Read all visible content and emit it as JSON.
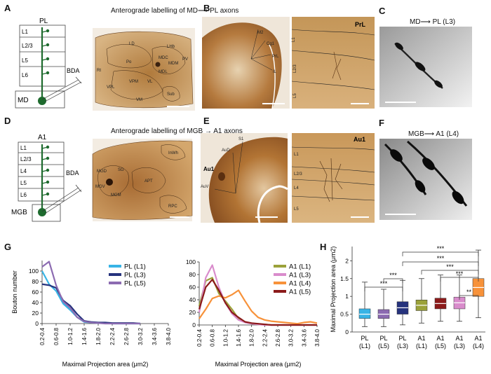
{
  "panels": {
    "A": {
      "letter": "A",
      "title": "Anterograde labelling of MD⟶ PL axons",
      "schematic": {
        "region": "PL",
        "layers": [
          "L1",
          "L2/3",
          "L5",
          "L6"
        ],
        "tracer": "BDA",
        "source": "MD"
      },
      "slice_labels": [
        "LD",
        "Po",
        "MDC",
        "LHb",
        "MDM",
        "PV",
        "MDL",
        "VPM",
        "VPL",
        "Rt",
        "VL",
        "VM",
        "Sub"
      ]
    },
    "B": {
      "letter": "B",
      "labels": [
        "M2",
        "Cg1",
        "PrL",
        "IL"
      ],
      "zoom_region": "PrL",
      "zoom_layers": [
        "L1",
        "L2/3",
        "L5"
      ]
    },
    "C": {
      "letter": "C",
      "title": "MD⟶ PL (L3)"
    },
    "D": {
      "letter": "D",
      "title": "Anterograde labelling of MGB → A1 axons",
      "schematic": {
        "region": "A1",
        "layers": [
          "L1",
          "L2/3",
          "L4",
          "L5",
          "L6"
        ],
        "tracer": "BDA",
        "source": "MGB"
      },
      "slice_labels": [
        "InWh",
        "MGD",
        "SG",
        "MGV",
        "MGM",
        "APT",
        "RPC"
      ]
    },
    "E": {
      "letter": "E",
      "labels": [
        "S1",
        "AuD",
        "Au1",
        "AuV"
      ],
      "zoom_region": "Au1",
      "zoom_layers": [
        "L1",
        "L2/3",
        "L4",
        "L5"
      ]
    },
    "F": {
      "letter": "F",
      "title": "MGB⟶ A1 (L4)"
    },
    "G": {
      "letter": "G"
    },
    "H": {
      "letter": "H"
    }
  },
  "chart_data": [
    {
      "type": "line",
      "ylabel": "Bouton number",
      "xlabel": "Maximal Projection area (μm2)",
      "categories": [
        "0.2-0.4",
        "0.4-0.6",
        "0.6-0.8",
        "0.8-1.0",
        "1.0-1.2",
        "1.2-1.4",
        "1.4-1.6",
        "1.6-1.8",
        "1.8-2.0",
        "2.0-2.2",
        "2.2-2.4",
        "2.4-2.6",
        "2.6-2.8",
        "2.8-3.0",
        "3.0-3.2"
      ],
      "tick_labels": [
        "0.2-0.4",
        "0.6-0.8",
        "1.0-1.2",
        "1.4-1.6",
        "1.8-2.0",
        "2.2-2.4",
        "2.6-2.8",
        "3.0-3.2",
        "3.4-3.6",
        "3.8-4.0"
      ],
      "ylim": [
        0,
        120
      ],
      "yticks": [
        0,
        20,
        40,
        60,
        80,
        100
      ],
      "legend_position": "top-right",
      "series": [
        {
          "name": "PL (L1)",
          "color": "#38b4e6",
          "values": [
            100,
            75,
            62,
            38,
            26,
            12,
            3,
            2,
            1,
            1,
            0,
            0,
            0,
            0,
            0
          ]
        },
        {
          "name": "PL (L3)",
          "color": "#26337d",
          "values": [
            75,
            73,
            68,
            44,
            34,
            18,
            5,
            3,
            2,
            2,
            1,
            1,
            1,
            1,
            0
          ]
        },
        {
          "name": "PL (L5)",
          "color": "#8c6bb1",
          "values": [
            108,
            118,
            73,
            42,
            30,
            12,
            4,
            2,
            1,
            0,
            0,
            0,
            0,
            0,
            0
          ]
        }
      ]
    },
    {
      "type": "line",
      "xlabel": "Maximal Projection area (μm2)",
      "categories": [
        "0.2-0.4",
        "0.4-0.6",
        "0.6-0.8",
        "0.8-1.0",
        "1.0-1.2",
        "1.2-1.4",
        "1.4-1.6",
        "1.6-1.8",
        "1.8-2.0",
        "2.0-2.2",
        "2.2-2.4",
        "2.4-2.6",
        "2.6-2.8",
        "2.8-3.0",
        "3.0-3.2",
        "3.2-3.4",
        "3.4-3.6",
        "3.6-3.8",
        "3.8-4.0"
      ],
      "tick_labels": [
        "0.2-0.4",
        "0.6-0.8",
        "1.0-1.2",
        "1.4-1.6",
        "1.8-2.0",
        "2.2-2.4",
        "2.6-2.8",
        "3.0-3.2",
        "3.4-3.6",
        "3.8-4.0"
      ],
      "ylim": [
        0,
        100
      ],
      "yticks": [
        0,
        20,
        40,
        60,
        80,
        100
      ],
      "legend_position": "top-right",
      "series": [
        {
          "name": "A1 (L1)",
          "color": "#9ba23a",
          "values": [
            30,
            70,
            75,
            50,
            38,
            25,
            10,
            5,
            2,
            1,
            1,
            0,
            0,
            0,
            0,
            0,
            0,
            0,
            0
          ]
        },
        {
          "name": "A1 (L3)",
          "color": "#d98ccc",
          "values": [
            20,
            75,
            95,
            60,
            35,
            18,
            8,
            4,
            2,
            1,
            0,
            0,
            0,
            0,
            0,
            0,
            0,
            0,
            0
          ]
        },
        {
          "name": "A1 (L4)",
          "color": "#f7923a",
          "values": [
            10,
            25,
            42,
            46,
            43,
            48,
            55,
            38,
            22,
            12,
            8,
            6,
            5,
            4,
            3,
            2,
            4,
            5,
            3
          ]
        },
        {
          "name": "A1 (L5)",
          "color": "#8b1a1a",
          "values": [
            25,
            60,
            72,
            55,
            35,
            20,
            12,
            5,
            3,
            2,
            1,
            0,
            0,
            0,
            0,
            0,
            0,
            0,
            0
          ]
        }
      ]
    },
    {
      "type": "box",
      "ylabel": "Maximal Projection area (μm2)",
      "ylim": [
        0,
        2.4
      ],
      "yticks": [
        0,
        0.5,
        1,
        1.5,
        2
      ],
      "categories": [
        "PL (L1)",
        "PL (L5)",
        "PL (L3)",
        "A1 (L1)",
        "A1 (L5)",
        "A1 (L3)",
        "A1 (L4)"
      ],
      "tick_lines": [
        [
          "PL",
          "(L1)"
        ],
        [
          "PL",
          "(L5)"
        ],
        [
          "PL",
          "(L3)"
        ],
        [
          "A1",
          "(L1)"
        ],
        [
          "A1",
          "(L5)"
        ],
        [
          "A1",
          "(L3)"
        ],
        [
          "A1",
          "(L4)"
        ]
      ],
      "boxes": [
        {
          "label": "PL (L1)",
          "color": "#38b4e6",
          "min": 0.15,
          "q1": 0.38,
          "median": 0.5,
          "q3": 0.65,
          "max": 1.4
        },
        {
          "label": "PL (L5)",
          "color": "#8c6bb1",
          "min": 0.15,
          "q1": 0.38,
          "median": 0.5,
          "q3": 0.63,
          "max": 1.2
        },
        {
          "label": "PL (L3)",
          "color": "#26337d",
          "min": 0.2,
          "q1": 0.5,
          "median": 0.68,
          "q3": 0.85,
          "max": 1.45
        },
        {
          "label": "A1 (L1)",
          "color": "#9ba23a",
          "min": 0.25,
          "q1": 0.6,
          "median": 0.75,
          "q3": 0.9,
          "max": 1.5
        },
        {
          "label": "A1 (L5)",
          "color": "#8b1a1a",
          "min": 0.3,
          "q1": 0.65,
          "median": 0.8,
          "q3": 0.95,
          "max": 1.6
        },
        {
          "label": "A1 (L3)",
          "color": "#d98ccc",
          "min": 0.3,
          "q1": 0.65,
          "median": 0.82,
          "q3": 0.98,
          "max": 1.6
        },
        {
          "label": "A1 (L4)",
          "color": "#f7923a",
          "min": 0.4,
          "q1": 1.0,
          "median": 1.25,
          "q3": 1.5,
          "max": 2.3
        }
      ],
      "significance": [
        "***",
        "***",
        "***",
        "***",
        "***",
        "***",
        "**"
      ]
    }
  ]
}
